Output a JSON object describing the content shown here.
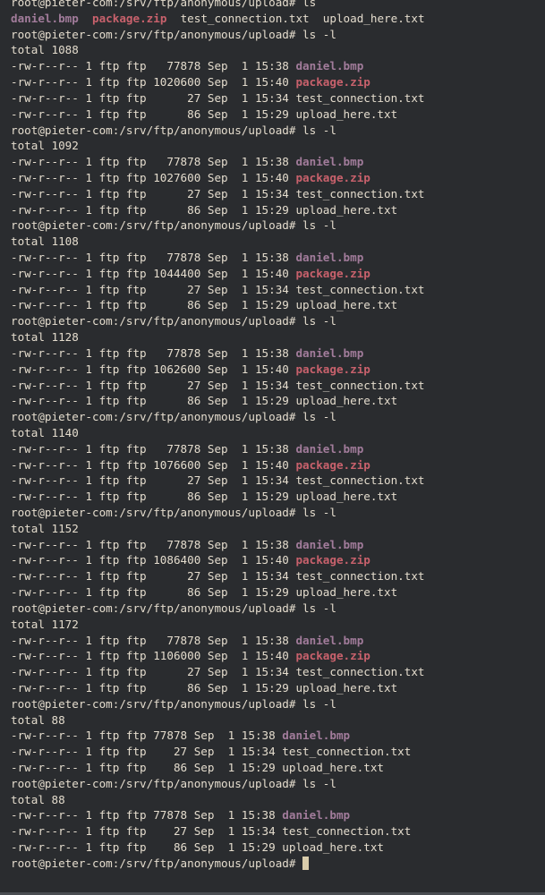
{
  "terminal": {
    "prompt": "root@pieter-com:/srv/ftp/anonymous/upload# ",
    "colors": {
      "background": "#2a2c2f",
      "text": "#e4dccd",
      "bmp": "#a27c9b",
      "zip": "#c8616c",
      "cursor": "#d9ccaa"
    },
    "lines": [
      [
        {
          "t": "root@pieter-com:/srv/ftp/anonymous/upload# ls"
        }
      ],
      [
        {
          "t": "daniel.bmp",
          "c": "bmp"
        },
        {
          "t": "  "
        },
        {
          "t": "package.zip",
          "c": "zip"
        },
        {
          "t": "  test_connection.txt  upload_here.txt"
        }
      ],
      [
        {
          "t": "root@pieter-com:/srv/ftp/anonymous/upload# ls -l"
        }
      ],
      [
        {
          "t": "total 1088"
        }
      ],
      [
        {
          "t": "-rw-r--r-- 1 ftp ftp   77878 Sep  1 15:38 "
        },
        {
          "t": "daniel.bmp",
          "c": "bmp"
        }
      ],
      [
        {
          "t": "-rw-r--r-- 1 ftp ftp 1020600 Sep  1 15:40 "
        },
        {
          "t": "package.zip",
          "c": "zip"
        }
      ],
      [
        {
          "t": "-rw-r--r-- 1 ftp ftp      27 Sep  1 15:34 test_connection.txt"
        }
      ],
      [
        {
          "t": "-rw-r--r-- 1 ftp ftp      86 Sep  1 15:29 upload_here.txt"
        }
      ],
      [
        {
          "t": "root@pieter-com:/srv/ftp/anonymous/upload# ls -l"
        }
      ],
      [
        {
          "t": "total 1092"
        }
      ],
      [
        {
          "t": "-rw-r--r-- 1 ftp ftp   77878 Sep  1 15:38 "
        },
        {
          "t": "daniel.bmp",
          "c": "bmp"
        }
      ],
      [
        {
          "t": "-rw-r--r-- 1 ftp ftp 1027600 Sep  1 15:40 "
        },
        {
          "t": "package.zip",
          "c": "zip"
        }
      ],
      [
        {
          "t": "-rw-r--r-- 1 ftp ftp      27 Sep  1 15:34 test_connection.txt"
        }
      ],
      [
        {
          "t": "-rw-r--r-- 1 ftp ftp      86 Sep  1 15:29 upload_here.txt"
        }
      ],
      [
        {
          "t": "root@pieter-com:/srv/ftp/anonymous/upload# ls -l"
        }
      ],
      [
        {
          "t": "total 1108"
        }
      ],
      [
        {
          "t": "-rw-r--r-- 1 ftp ftp   77878 Sep  1 15:38 "
        },
        {
          "t": "daniel.bmp",
          "c": "bmp"
        }
      ],
      [
        {
          "t": "-rw-r--r-- 1 ftp ftp 1044400 Sep  1 15:40 "
        },
        {
          "t": "package.zip",
          "c": "zip"
        }
      ],
      [
        {
          "t": "-rw-r--r-- 1 ftp ftp      27 Sep  1 15:34 test_connection.txt"
        }
      ],
      [
        {
          "t": "-rw-r--r-- 1 ftp ftp      86 Sep  1 15:29 upload_here.txt"
        }
      ],
      [
        {
          "t": "root@pieter-com:/srv/ftp/anonymous/upload# ls -l"
        }
      ],
      [
        {
          "t": "total 1128"
        }
      ],
      [
        {
          "t": "-rw-r--r-- 1 ftp ftp   77878 Sep  1 15:38 "
        },
        {
          "t": "daniel.bmp",
          "c": "bmp"
        }
      ],
      [
        {
          "t": "-rw-r--r-- 1 ftp ftp 1062600 Sep  1 15:40 "
        },
        {
          "t": "package.zip",
          "c": "zip"
        }
      ],
      [
        {
          "t": "-rw-r--r-- 1 ftp ftp      27 Sep  1 15:34 test_connection.txt"
        }
      ],
      [
        {
          "t": "-rw-r--r-- 1 ftp ftp      86 Sep  1 15:29 upload_here.txt"
        }
      ],
      [
        {
          "t": "root@pieter-com:/srv/ftp/anonymous/upload# ls -l"
        }
      ],
      [
        {
          "t": "total 1140"
        }
      ],
      [
        {
          "t": "-rw-r--r-- 1 ftp ftp   77878 Sep  1 15:38 "
        },
        {
          "t": "daniel.bmp",
          "c": "bmp"
        }
      ],
      [
        {
          "t": "-rw-r--r-- 1 ftp ftp 1076600 Sep  1 15:40 "
        },
        {
          "t": "package.zip",
          "c": "zip"
        }
      ],
      [
        {
          "t": "-rw-r--r-- 1 ftp ftp      27 Sep  1 15:34 test_connection.txt"
        }
      ],
      [
        {
          "t": "-rw-r--r-- 1 ftp ftp      86 Sep  1 15:29 upload_here.txt"
        }
      ],
      [
        {
          "t": "root@pieter-com:/srv/ftp/anonymous/upload# ls -l"
        }
      ],
      [
        {
          "t": "total 1152"
        }
      ],
      [
        {
          "t": "-rw-r--r-- 1 ftp ftp   77878 Sep  1 15:38 "
        },
        {
          "t": "daniel.bmp",
          "c": "bmp"
        }
      ],
      [
        {
          "t": "-rw-r--r-- 1 ftp ftp 1086400 Sep  1 15:40 "
        },
        {
          "t": "package.zip",
          "c": "zip"
        }
      ],
      [
        {
          "t": "-rw-r--r-- 1 ftp ftp      27 Sep  1 15:34 test_connection.txt"
        }
      ],
      [
        {
          "t": "-rw-r--r-- 1 ftp ftp      86 Sep  1 15:29 upload_here.txt"
        }
      ],
      [
        {
          "t": "root@pieter-com:/srv/ftp/anonymous/upload# ls -l"
        }
      ],
      [
        {
          "t": "total 1172"
        }
      ],
      [
        {
          "t": "-rw-r--r-- 1 ftp ftp   77878 Sep  1 15:38 "
        },
        {
          "t": "daniel.bmp",
          "c": "bmp"
        }
      ],
      [
        {
          "t": "-rw-r--r-- 1 ftp ftp 1106000 Sep  1 15:40 "
        },
        {
          "t": "package.zip",
          "c": "zip"
        }
      ],
      [
        {
          "t": "-rw-r--r-- 1 ftp ftp      27 Sep  1 15:34 test_connection.txt"
        }
      ],
      [
        {
          "t": "-rw-r--r-- 1 ftp ftp      86 Sep  1 15:29 upload_here.txt"
        }
      ],
      [
        {
          "t": "root@pieter-com:/srv/ftp/anonymous/upload# ls -l"
        }
      ],
      [
        {
          "t": "total 88"
        }
      ],
      [
        {
          "t": "-rw-r--r-- 1 ftp ftp 77878 Sep  1 15:38 "
        },
        {
          "t": "daniel.bmp",
          "c": "bmp"
        }
      ],
      [
        {
          "t": "-rw-r--r-- 1 ftp ftp    27 Sep  1 15:34 test_connection.txt"
        }
      ],
      [
        {
          "t": "-rw-r--r-- 1 ftp ftp    86 Sep  1 15:29 upload_here.txt"
        }
      ],
      [
        {
          "t": "root@pieter-com:/srv/ftp/anonymous/upload# ls -l"
        }
      ],
      [
        {
          "t": "total 88"
        }
      ],
      [
        {
          "t": "-rw-r--r-- 1 ftp ftp 77878 Sep  1 15:38 "
        },
        {
          "t": "daniel.bmp",
          "c": "bmp"
        }
      ],
      [
        {
          "t": "-rw-r--r-- 1 ftp ftp    27 Sep  1 15:34 test_connection.txt"
        }
      ],
      [
        {
          "t": "-rw-r--r-- 1 ftp ftp    86 Sep  1 15:29 upload_here.txt"
        }
      ]
    ]
  }
}
